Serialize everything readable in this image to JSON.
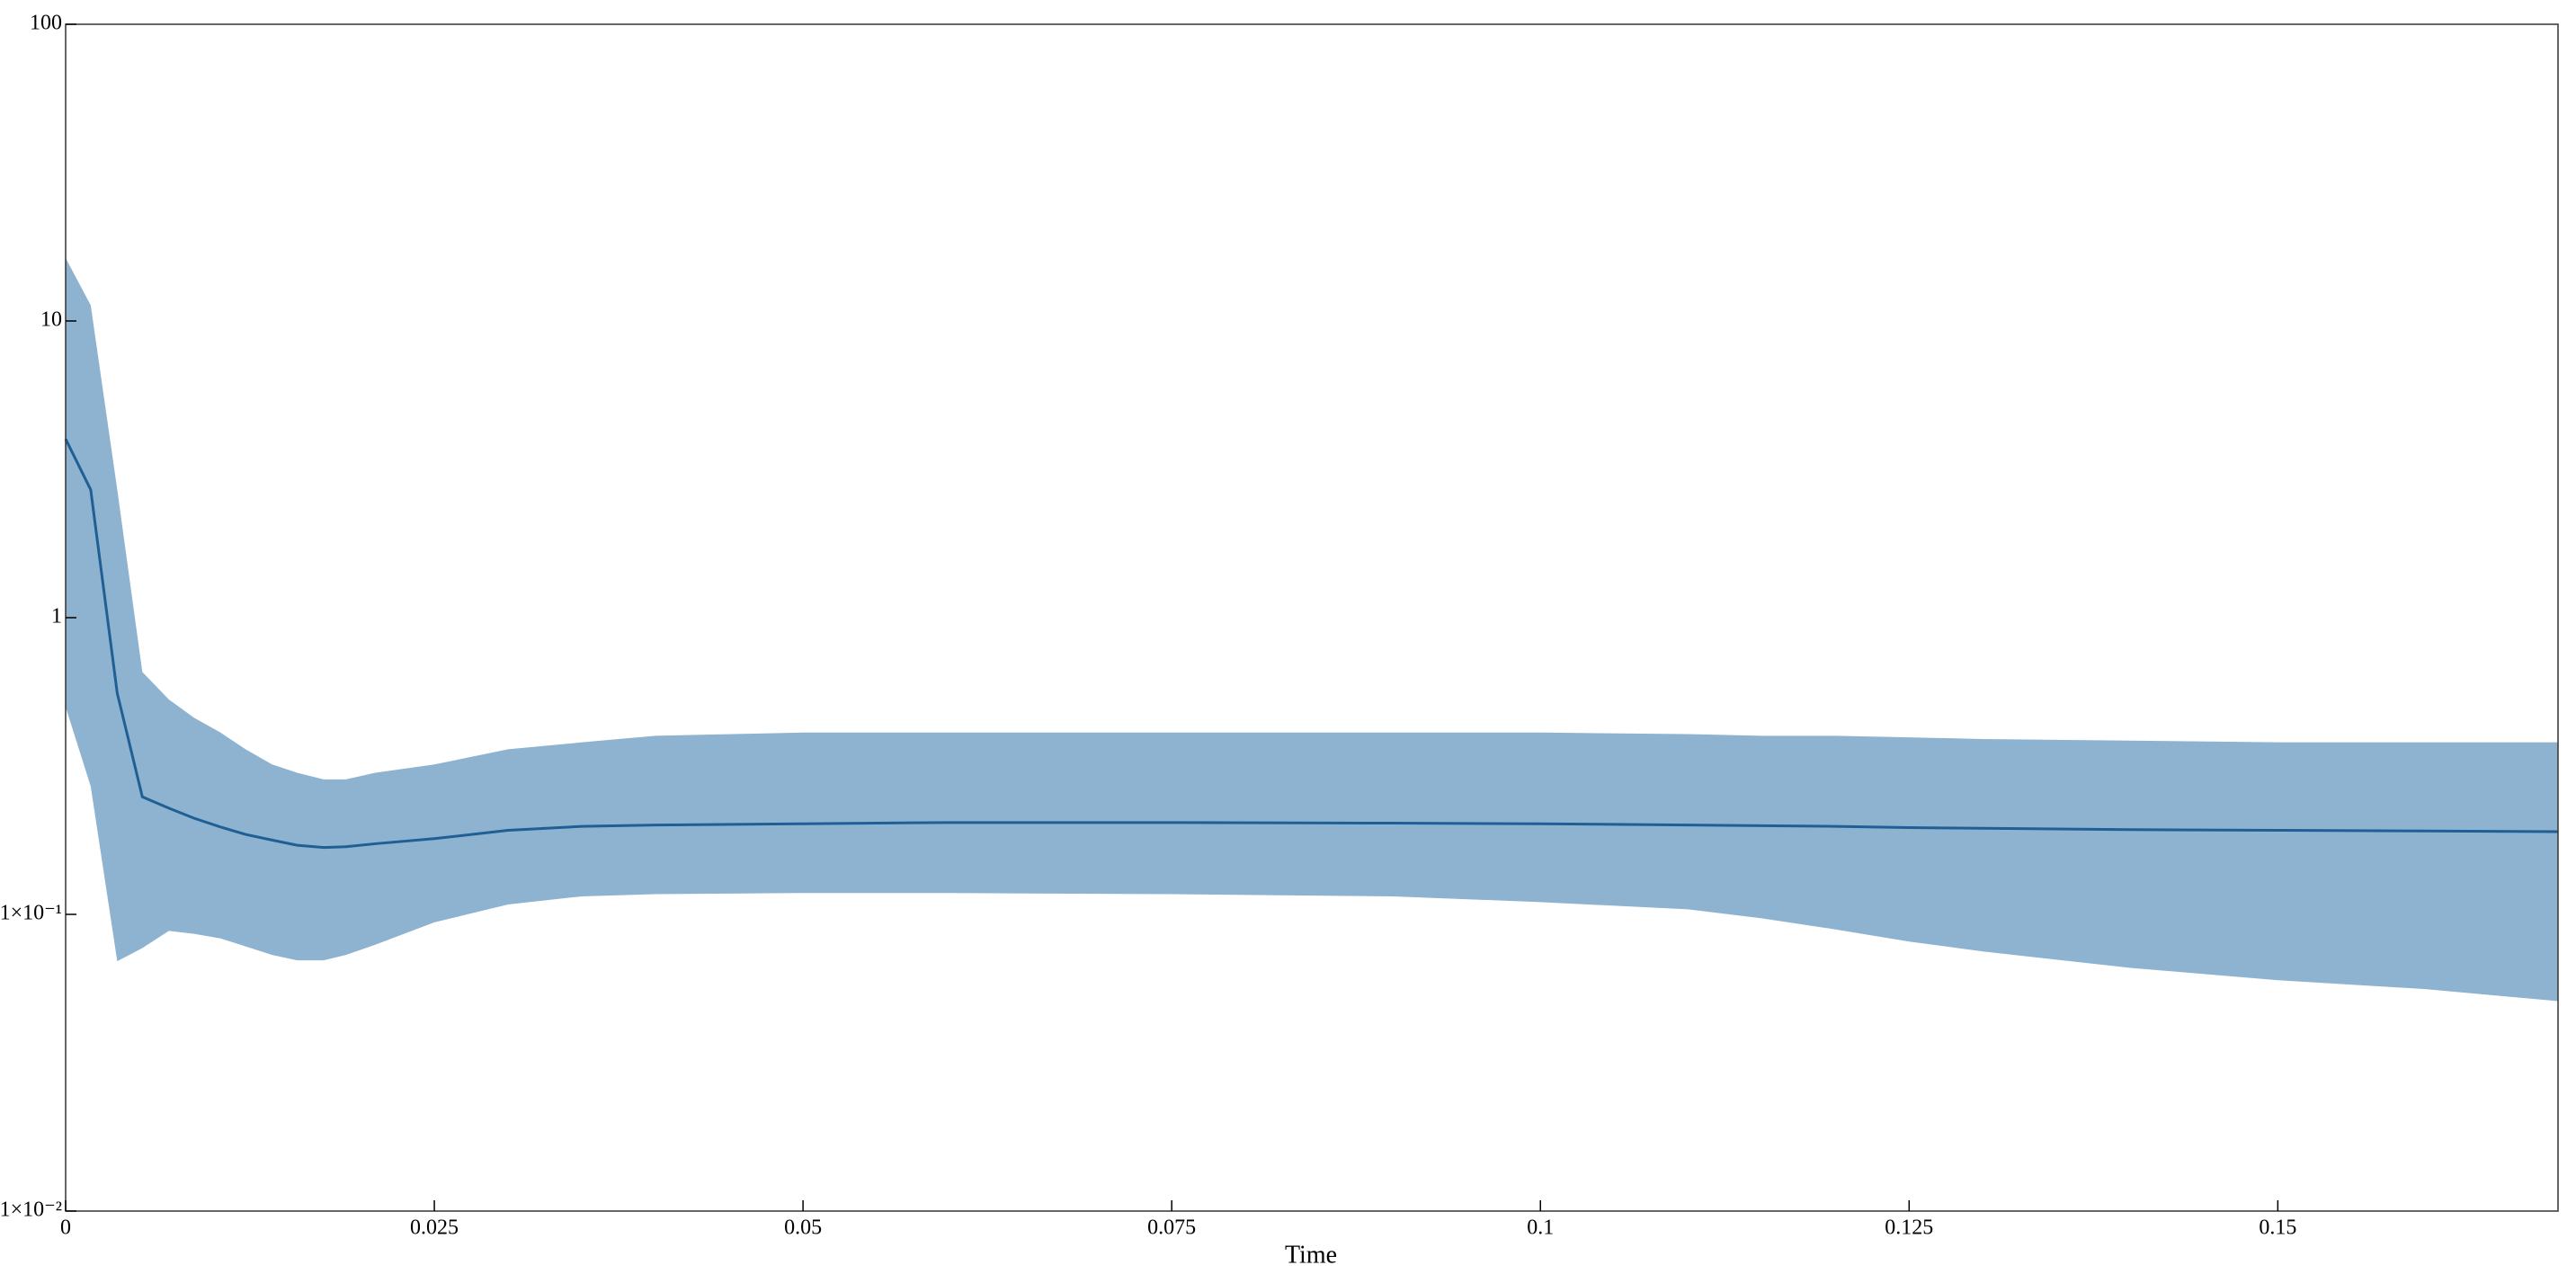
{
  "chart_data": {
    "type": "line-band",
    "x_label": "Time",
    "x": [
      0,
      0.0017,
      0.0035,
      0.0052,
      0.007,
      0.0087,
      0.0105,
      0.0122,
      0.014,
      0.0157,
      0.0175,
      0.019,
      0.021,
      0.025,
      0.03,
      0.035,
      0.04,
      0.05,
      0.06,
      0.075,
      0.09,
      0.1,
      0.11,
      0.115,
      0.12,
      0.125,
      0.13,
      0.14,
      0.15,
      0.16,
      0.169
    ],
    "series": [
      {
        "color": "#1f5f94",
        "band_color": "#8db3d1",
        "values": [
          4.0,
          2.7,
          0.556,
          0.249,
          0.228,
          0.211,
          0.197,
          0.186,
          0.178,
          0.171,
          0.168,
          0.169,
          0.173,
          0.18,
          0.192,
          0.198,
          0.2,
          0.202,
          0.204,
          0.204,
          0.203,
          0.202,
          0.2,
          0.199,
          0.198,
          0.196,
          0.195,
          0.193,
          0.192,
          0.191,
          0.19
        ],
        "upper": [
          16.3,
          11.3,
          2.7,
          0.656,
          0.53,
          0.46,
          0.41,
          0.36,
          0.32,
          0.3,
          0.285,
          0.285,
          0.3,
          0.32,
          0.36,
          0.38,
          0.4,
          0.41,
          0.41,
          0.41,
          0.41,
          0.41,
          0.405,
          0.4,
          0.4,
          0.395,
          0.39,
          0.385,
          0.38,
          0.38,
          0.38
        ],
        "lower": [
          0.5,
          0.27,
          0.0695,
          0.077,
          0.088,
          0.086,
          0.083,
          0.078,
          0.073,
          0.07,
          0.07,
          0.073,
          0.079,
          0.094,
          0.108,
          0.115,
          0.117,
          0.118,
          0.118,
          0.117,
          0.115,
          0.11,
          0.104,
          0.097,
          0.089,
          0.081,
          0.075,
          0.066,
          0.06,
          0.056,
          0.051
        ]
      }
    ],
    "xlim": [
      0,
      0.169
    ],
    "xticks": [
      0,
      0.025,
      0.05,
      0.075,
      0.1,
      0.125,
      0.15
    ],
    "ylim": [
      0.01,
      100
    ],
    "log_y": true,
    "yticks": [
      {
        "value": 0.01,
        "label": "1×10⁻²"
      },
      {
        "value": 0.1,
        "label": "1×10⁻¹"
      },
      1,
      10,
      100
    ]
  }
}
